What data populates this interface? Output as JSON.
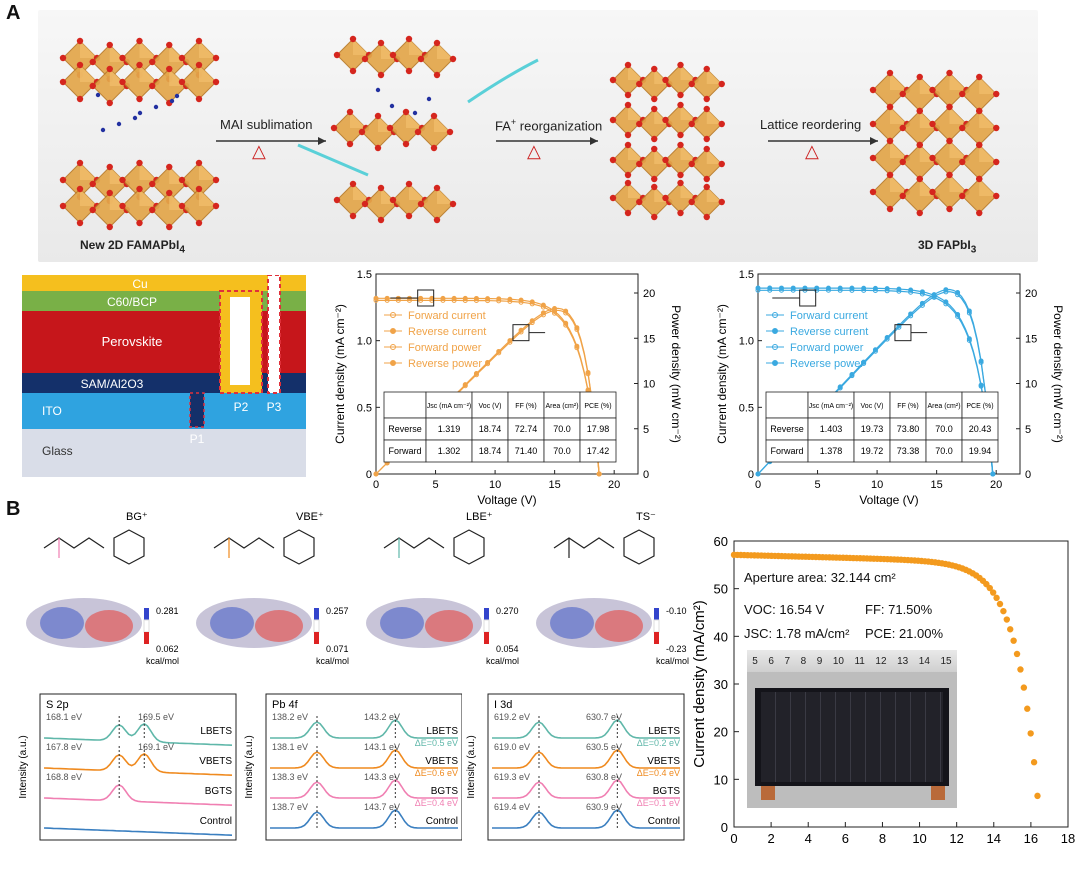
{
  "panel_labels": {
    "a": "A",
    "b": "B"
  },
  "process": {
    "start_label": "New 2D FAMAPbI",
    "start_sub": "4",
    "end_label": "3D FAPbI",
    "end_sub": "3",
    "step1": "MAI sublimation",
    "step2": "FA",
    "step2_sup": "+",
    "step2_rest": " reorganization",
    "step3": "Lattice reordering",
    "heat_symbol": "△"
  },
  "stack": {
    "layers": [
      "Cu",
      "C60/BCP",
      "Perovskite",
      "SAM/Al2O3",
      "ITO",
      "Glass"
    ],
    "scribes": [
      "P1",
      "P2",
      "P3"
    ]
  },
  "jv_common": {
    "xlabel": "Voltage (V)",
    "ylabel_left": "Current density (mA cm⁻²)",
    "ylabel_right": "Power density (mW cm⁻²)",
    "x_ticks": [
      "0",
      "5",
      "10",
      "15",
      "20"
    ],
    "y_ticks": [
      "0",
      "0.5",
      "1.0",
      "1.5"
    ],
    "y2_ticks": [
      "0",
      "5",
      "10",
      "15",
      "20"
    ],
    "legend": [
      "Forward current",
      "Reverse current",
      "Forward power",
      "Reverse power"
    ],
    "table_head": [
      "",
      "Jsc (mA cm⁻²)",
      "Voc (V)",
      "FF (%)",
      "Area (cm²)",
      "PCE (%)"
    ]
  },
  "chart_data": [
    {
      "type": "line",
      "title": "",
      "xlabel": "Voltage (V)",
      "ylabel": "Current density (mA cm⁻²)",
      "xlim": [
        0,
        22
      ],
      "ylim": [
        0,
        1.5
      ],
      "y2lim": [
        0,
        22.1
      ],
      "color": "#f0a348",
      "jsc": 1.302,
      "voc": 18.74,
      "pmax": 17.42,
      "table": [
        [
          "Reverse",
          "1.319",
          "18.74",
          "72.74",
          "70.0",
          "17.98"
        ],
        [
          "Forward",
          "1.302",
          "18.74",
          "71.40",
          "70.0",
          "17.42"
        ]
      ]
    },
    {
      "type": "line",
      "title": "",
      "xlabel": "Voltage (V)",
      "ylabel": "Current density (mA cm⁻²)",
      "xlim": [
        0,
        22
      ],
      "ylim": [
        0,
        1.5
      ],
      "y2lim": [
        0,
        22.1
      ],
      "color": "#3aa9e0",
      "jsc": 1.378,
      "voc": 19.72,
      "pmax": 19.94,
      "table": [
        [
          "Reverse",
          "1.403",
          "19.73",
          "73.80",
          "70.0",
          "20.43"
        ],
        [
          "Forward",
          "1.378",
          "19.72",
          "73.38",
          "70.0",
          "19.94"
        ]
      ]
    },
    {
      "type": "scatter",
      "title": "",
      "xlabel": "",
      "ylabel": "Current density (mA/cm²)",
      "xlim": [
        0,
        18
      ],
      "ylim": [
        0,
        60
      ],
      "x_ticks": [
        "0",
        "2",
        "4",
        "6",
        "8",
        "10",
        "12",
        "14",
        "16",
        "18"
      ],
      "y_ticks": [
        "0",
        "10",
        "20",
        "30",
        "40",
        "50",
        "60"
      ],
      "color": "#f39a1e",
      "jsc": 57.1,
      "voc": 16.54
    },
    {
      "type": "line",
      "title": "S 2p",
      "ylabel": "Intensity (a.u.)",
      "series": [
        {
          "name": "LBETS",
          "color": "#5fb7a9",
          "peaks": [
            "168.1 eV",
            "169.5 eV"
          ]
        },
        {
          "name": "VBETS",
          "color": "#ef8a1f",
          "peaks": [
            "167.8 eV",
            "169.1 eV"
          ]
        },
        {
          "name": "BGTS",
          "color": "#f07fb2",
          "peaks": [
            "168.8 eV"
          ]
        },
        {
          "name": "Control",
          "color": "#3a7fc0",
          "peaks": []
        }
      ]
    },
    {
      "type": "line",
      "title": "Pb 4f",
      "ylabel": "Intensity (a.u.)",
      "series": [
        {
          "name": "LBETS",
          "color": "#5fb7a9",
          "peaks": [
            "138.2 eV",
            "143.2 eV"
          ],
          "delta": "ΔE=0.5 eV"
        },
        {
          "name": "VBETS",
          "color": "#ef8a1f",
          "peaks": [
            "138.1 eV",
            "143.1 eV"
          ],
          "delta": "ΔE=0.6 eV"
        },
        {
          "name": "BGTS",
          "color": "#f07fb2",
          "peaks": [
            "138.3 eV",
            "143.3 eV"
          ],
          "delta": "ΔE=0.4 eV"
        },
        {
          "name": "Control",
          "color": "#3a7fc0",
          "peaks": [
            "138.7 eV",
            "143.7 eV"
          ]
        }
      ]
    },
    {
      "type": "line",
      "title": "I 3d",
      "ylabel": "Intensity (a.u.)",
      "series": [
        {
          "name": "LBETS",
          "color": "#5fb7a9",
          "peaks": [
            "619.2 eV",
            "630.7 eV"
          ],
          "delta": "ΔE=0.2 eV"
        },
        {
          "name": "VBETS",
          "color": "#ef8a1f",
          "peaks": [
            "619.0 eV",
            "630.5 eV"
          ],
          "delta": "ΔE=0.4 eV"
        },
        {
          "name": "BGTS",
          "color": "#f07fb2",
          "peaks": [
            "619.3 eV",
            "630.8 eV"
          ],
          "delta": "ΔE=0.1 eV"
        },
        {
          "name": "Control",
          "color": "#3a7fc0",
          "peaks": [
            "619.4 eV",
            "630.9 eV"
          ]
        }
      ]
    }
  ],
  "module": {
    "aperture": "Aperture area: 32.144 cm²",
    "voc": "VOC: 16.54 V",
    "ff": "FF:  71.50%",
    "jsc": "JSC:  1.78 mA/cm²",
    "pce": "PCE: 21.00%",
    "ruler": [
      "5",
      "6",
      "7",
      "8",
      "9",
      "10",
      "11",
      "12",
      "13",
      "14",
      "15"
    ]
  },
  "molecules": [
    {
      "name": "BG⁺",
      "max": "0.281",
      "min": "0.062",
      "unit": "kcal/mol",
      "color": "#f07fb2"
    },
    {
      "name": "VBE⁺",
      "max": "0.257",
      "min": "0.071",
      "unit": "kcal/mol",
      "color": "#ef8a1f"
    },
    {
      "name": "LBE⁺",
      "max": "0.270",
      "min": "0.054",
      "unit": "kcal/mol",
      "color": "#5fb7a9"
    },
    {
      "name": "TS⁻",
      "max": "-0.10",
      "min": "-0.23",
      "unit": "kcal/mol",
      "color": "#222"
    }
  ]
}
